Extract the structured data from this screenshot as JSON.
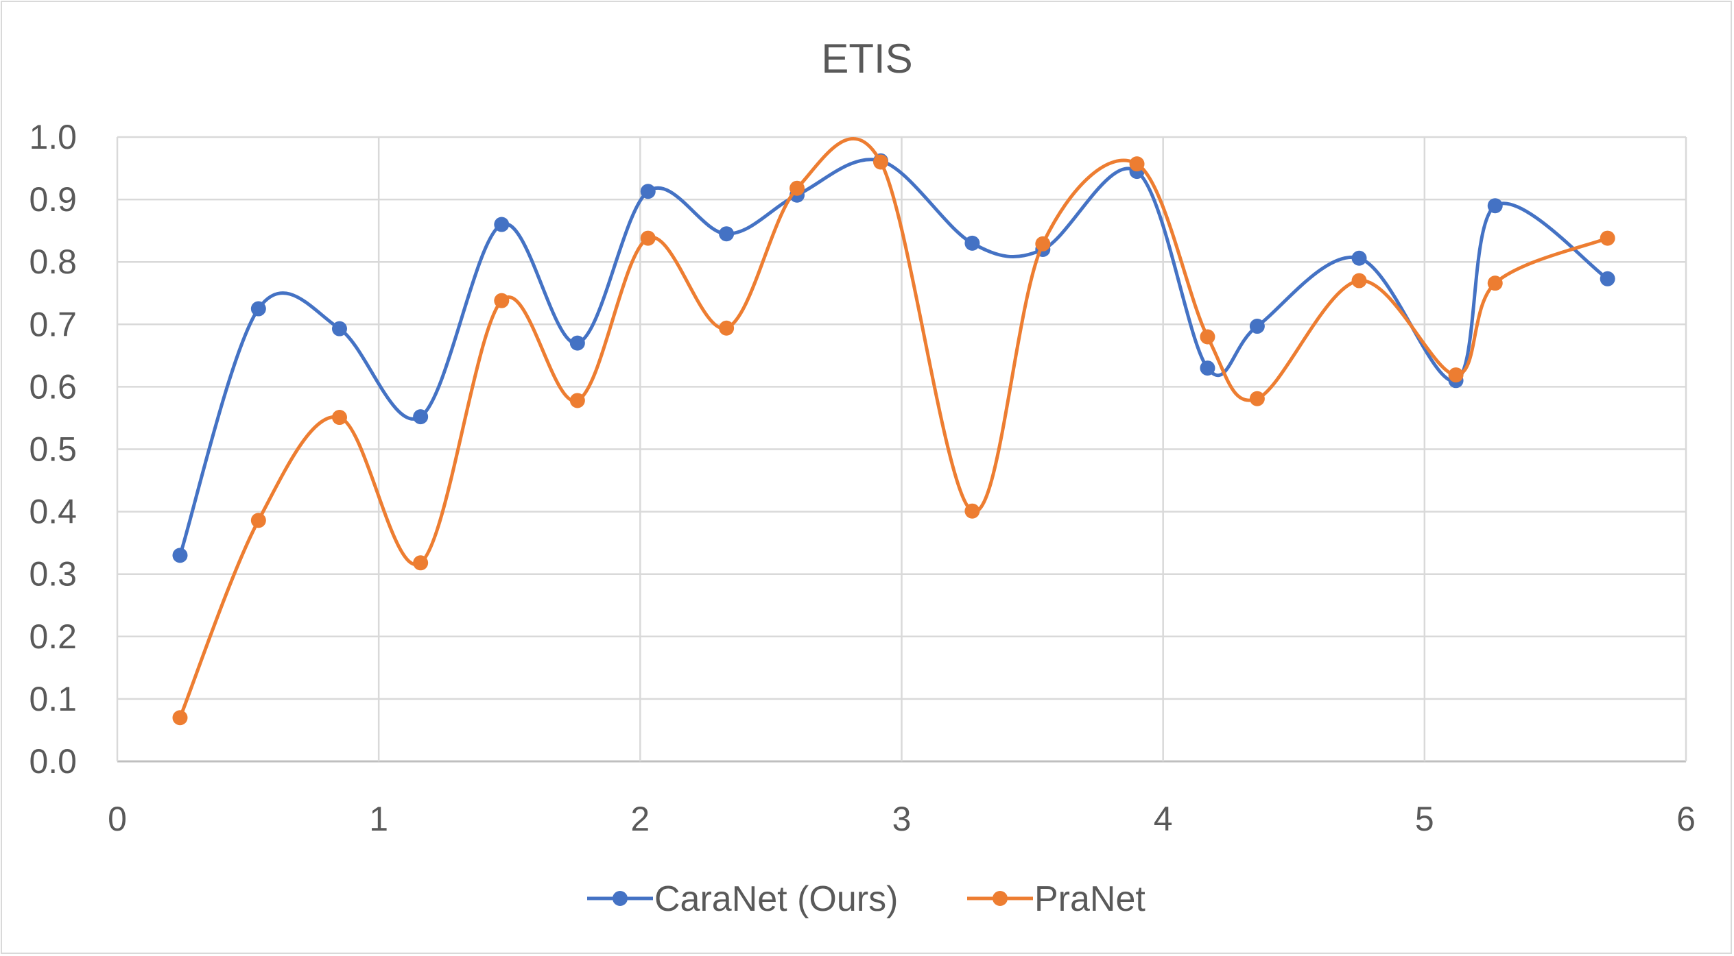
{
  "chart_data": {
    "type": "scatter",
    "title": "ETIS",
    "xlabel": "",
    "ylabel": "",
    "xlim": [
      0,
      6
    ],
    "ylim": [
      0,
      1.0
    ],
    "x_ticks": [
      "0",
      "1",
      "2",
      "3",
      "4",
      "5",
      "6"
    ],
    "y_ticks": [
      "0.0",
      "0.1",
      "0.2",
      "0.3",
      "0.4",
      "0.5",
      "0.6",
      "0.7",
      "0.8",
      "0.9",
      "1.0"
    ],
    "grid": true,
    "smooth_lines": true,
    "legend_position": "bottom",
    "series": [
      {
        "name": "CaraNet (Ours)",
        "color": "#4472c4",
        "points": [
          [
            0.24,
            0.33
          ],
          [
            0.54,
            0.725
          ],
          [
            0.85,
            0.693
          ],
          [
            1.16,
            0.552
          ],
          [
            1.47,
            0.86
          ],
          [
            1.76,
            0.67
          ],
          [
            2.03,
            0.913
          ],
          [
            2.33,
            0.845
          ],
          [
            2.6,
            0.907
          ],
          [
            2.92,
            0.962
          ],
          [
            3.27,
            0.83
          ],
          [
            3.54,
            0.82
          ],
          [
            3.9,
            0.945
          ],
          [
            4.17,
            0.63
          ],
          [
            4.36,
            0.697
          ],
          [
            4.75,
            0.806
          ],
          [
            5.12,
            0.61
          ],
          [
            5.27,
            0.89
          ],
          [
            5.7,
            0.773
          ]
        ]
      },
      {
        "name": "PraNet",
        "color": "#ed7d31",
        "points": [
          [
            0.24,
            0.07
          ],
          [
            0.54,
            0.386
          ],
          [
            0.85,
            0.551
          ],
          [
            1.16,
            0.318
          ],
          [
            1.47,
            0.738
          ],
          [
            1.76,
            0.578
          ],
          [
            2.03,
            0.838
          ],
          [
            2.33,
            0.694
          ],
          [
            2.6,
            0.918
          ],
          [
            2.92,
            0.96
          ],
          [
            3.27,
            0.401
          ],
          [
            3.54,
            0.829
          ],
          [
            3.9,
            0.957
          ],
          [
            4.17,
            0.68
          ],
          [
            4.36,
            0.581
          ],
          [
            4.75,
            0.77
          ],
          [
            5.12,
            0.619
          ],
          [
            5.27,
            0.766
          ],
          [
            5.7,
            0.838
          ]
        ]
      }
    ]
  }
}
